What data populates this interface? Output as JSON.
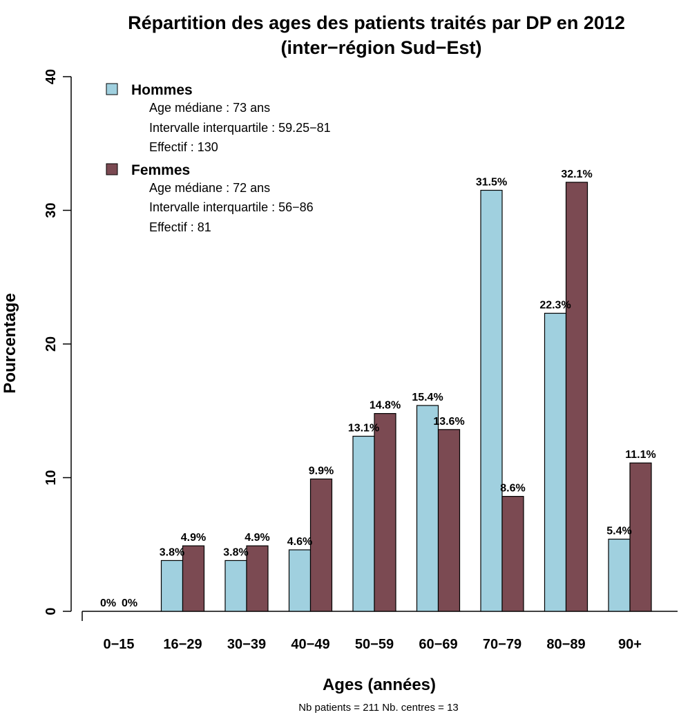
{
  "chart_data": {
    "type": "bar",
    "title": [
      "Répartition des ages des patients traités par DP en 2012",
      "(inter−région Sud−Est)"
    ],
    "xlabel": "Ages (années)",
    "ylabel": "Pourcentage",
    "ylim": [
      0,
      40
    ],
    "yticks": [
      "0",
      "10",
      "20",
      "30",
      "40"
    ],
    "grid": false,
    "categories": [
      "0−15",
      "16−29",
      "30−39",
      "40−49",
      "50−59",
      "60−69",
      "70−79",
      "80−89",
      "90+"
    ],
    "series": [
      {
        "name": "Hommes",
        "color": "#a0d0df",
        "values": [
          0,
          3.8,
          3.8,
          4.6,
          13.1,
          15.4,
          31.5,
          22.3,
          5.4
        ],
        "labels": [
          "0%",
          "3.8%",
          "3.8%",
          "4.6%",
          "13.1%",
          "15.4%",
          "31.5%",
          "22.3%",
          "5.4%"
        ],
        "details": [
          "Age médiane : 73 ans",
          "Intervalle interquartile : 59.25−81",
          "Effectif :  130"
        ]
      },
      {
        "name": "Femmes",
        "color": "#7b4a52",
        "values": [
          0,
          4.9,
          4.9,
          9.9,
          14.8,
          13.6,
          8.6,
          32.1,
          11.1
        ],
        "labels": [
          "0%",
          "4.9%",
          "4.9%",
          "9.9%",
          "14.8%",
          "13.6%",
          "8.6%",
          "32.1%",
          "11.1%"
        ],
        "details": [
          "Age médiane : 72 ans",
          "Intervalle interquartile : 56−86",
          "Effectif :  81"
        ]
      }
    ],
    "legend_position": "top-left",
    "footer": "Nb patients =  211     Nb. centres =  13"
  }
}
